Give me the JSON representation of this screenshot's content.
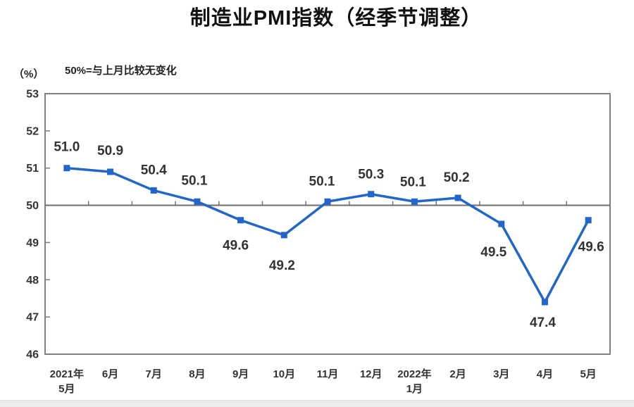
{
  "page": {
    "title": "制造业PMI指数（经季节调整）",
    "unit_label": "（%）",
    "note": "50%=与上月比较无变化"
  },
  "chart_data": {
    "type": "line",
    "title": "制造业PMI指数（经季节调整）",
    "subtitle": "50%=与上月比较无变化",
    "ylabel": "（%）",
    "xlabel": "",
    "categories": [
      "2021年\n5月",
      "6月",
      "7月",
      "8月",
      "9月",
      "10月",
      "11月",
      "12月",
      "2022年\n1月",
      "2月",
      "3月",
      "4月",
      "5月"
    ],
    "series": [
      {
        "name": "制造业PMI指数",
        "values": [
          51.0,
          50.9,
          50.4,
          50.1,
          49.6,
          49.2,
          50.1,
          50.3,
          50.1,
          50.2,
          49.5,
          47.4,
          49.6
        ]
      }
    ],
    "data_labels": [
      "51.0",
      "50.9",
      "50.4",
      "50.1",
      "49.6",
      "49.2",
      "50.1",
      "50.3",
      "50.1",
      "50.2",
      "49.5",
      "47.4",
      "49.6"
    ],
    "label_side": [
      "above",
      "above",
      "above",
      "above",
      "below",
      "below",
      "above",
      "above",
      "above",
      "above",
      "below",
      "below",
      "below"
    ],
    "ylim": [
      46,
      53
    ],
    "yticks": [
      46,
      47,
      48,
      49,
      50,
      51,
      52,
      53
    ],
    "reference_line": 50,
    "grid": false,
    "legend_position": "none",
    "line_color": "#2166c8",
    "marker": "square",
    "text_color": "#333333",
    "axis_color": "#7f7f7f"
  }
}
